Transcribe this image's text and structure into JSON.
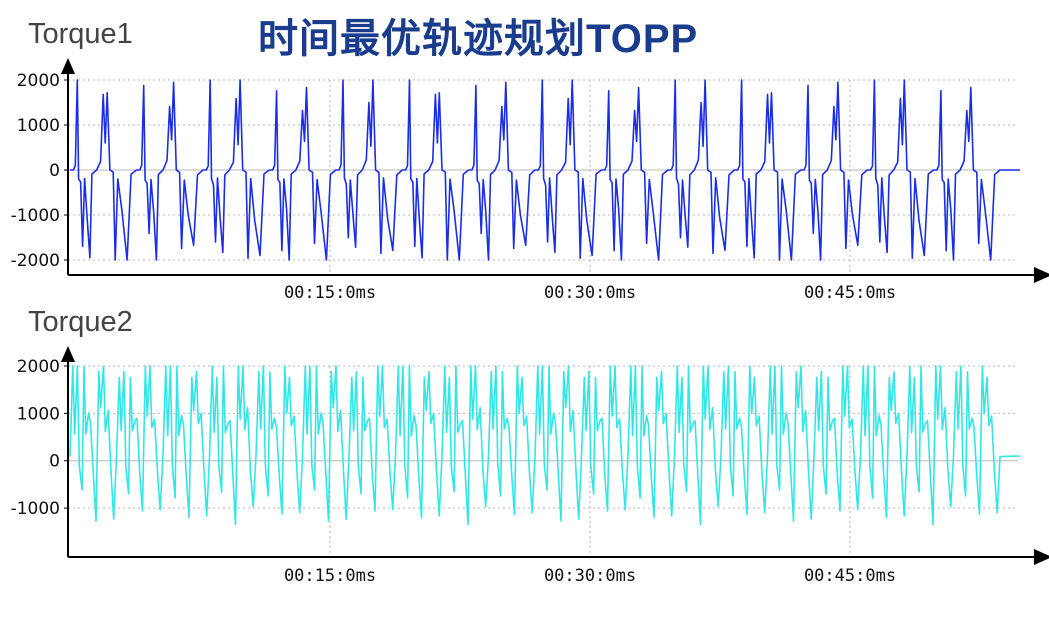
{
  "title": "时间最优轨迹规划TOPP",
  "colors": {
    "torque1": "#1a2ee6",
    "torque2": "#33e6e6",
    "title": "#1a3c8c",
    "grid": "#b8b8b8",
    "axis": "#000000"
  },
  "chart_data": [
    {
      "type": "line",
      "title": "Torque1",
      "xlabel": "",
      "ylabel": "",
      "x_ticks": [
        "00:15:0ms",
        "00:30:0ms",
        "00:45:0ms"
      ],
      "y_ticks": [
        "2000",
        "1000",
        "0",
        "-1000",
        "-2000"
      ],
      "ylim": [
        -2000,
        2000
      ],
      "grid": true,
      "series": [
        {
          "color": "#1a2ee6",
          "pattern_per_cycle": [
            [
              0.0,
              0
            ],
            [
              0.05,
              0
            ],
            [
              0.08,
              100
            ],
            [
              0.11,
              2000
            ],
            [
              0.13,
              -200
            ],
            [
              0.16,
              -300
            ],
            [
              0.19,
              -1600
            ],
            [
              0.22,
              -200
            ],
            [
              0.26,
              -1000
            ],
            [
              0.3,
              -1950
            ],
            [
              0.33,
              -100
            ],
            [
              0.4,
              0
            ],
            [
              0.46,
              200
            ],
            [
              0.5,
              1500
            ],
            [
              0.53,
              600
            ],
            [
              0.56,
              1950
            ],
            [
              0.6,
              0
            ],
            [
              0.65,
              -50
            ],
            [
              0.68,
              -1850
            ],
            [
              0.72,
              -200
            ],
            [
              0.78,
              -1000
            ],
            [
              0.86,
              -1900
            ],
            [
              0.92,
              -100
            ],
            [
              1.0,
              0
            ]
          ],
          "cycles": 14
        }
      ]
    },
    {
      "type": "line",
      "title": "Torque2",
      "xlabel": "",
      "ylabel": "",
      "x_ticks": [
        "00:15:0ms",
        "00:30:0ms",
        "00:45:0ms"
      ],
      "y_ticks": [
        "2000",
        "1000",
        "0",
        "-1000"
      ],
      "ylim": [
        -1800,
        2000
      ],
      "grid": true,
      "series": [
        {
          "color": "#33e6e6",
          "pattern_per_cycle": [
            [
              0.0,
              100
            ],
            [
              0.06,
              2000
            ],
            [
              0.1,
              600
            ],
            [
              0.16,
              2000
            ],
            [
              0.2,
              -100
            ],
            [
              0.26,
              -700
            ],
            [
              0.3,
              2000
            ],
            [
              0.34,
              600
            ],
            [
              0.4,
              900
            ],
            [
              0.44,
              800
            ],
            [
              0.5,
              -300
            ],
            [
              0.56,
              -1200
            ],
            [
              0.62,
              2000
            ],
            [
              0.66,
              1000
            ],
            [
              0.72,
              2000
            ],
            [
              0.76,
              700
            ],
            [
              0.82,
              1000
            ],
            [
              0.88,
              -200
            ],
            [
              0.94,
              -1100
            ],
            [
              1.0,
              100
            ]
          ],
          "cycles": 20
        }
      ]
    }
  ]
}
